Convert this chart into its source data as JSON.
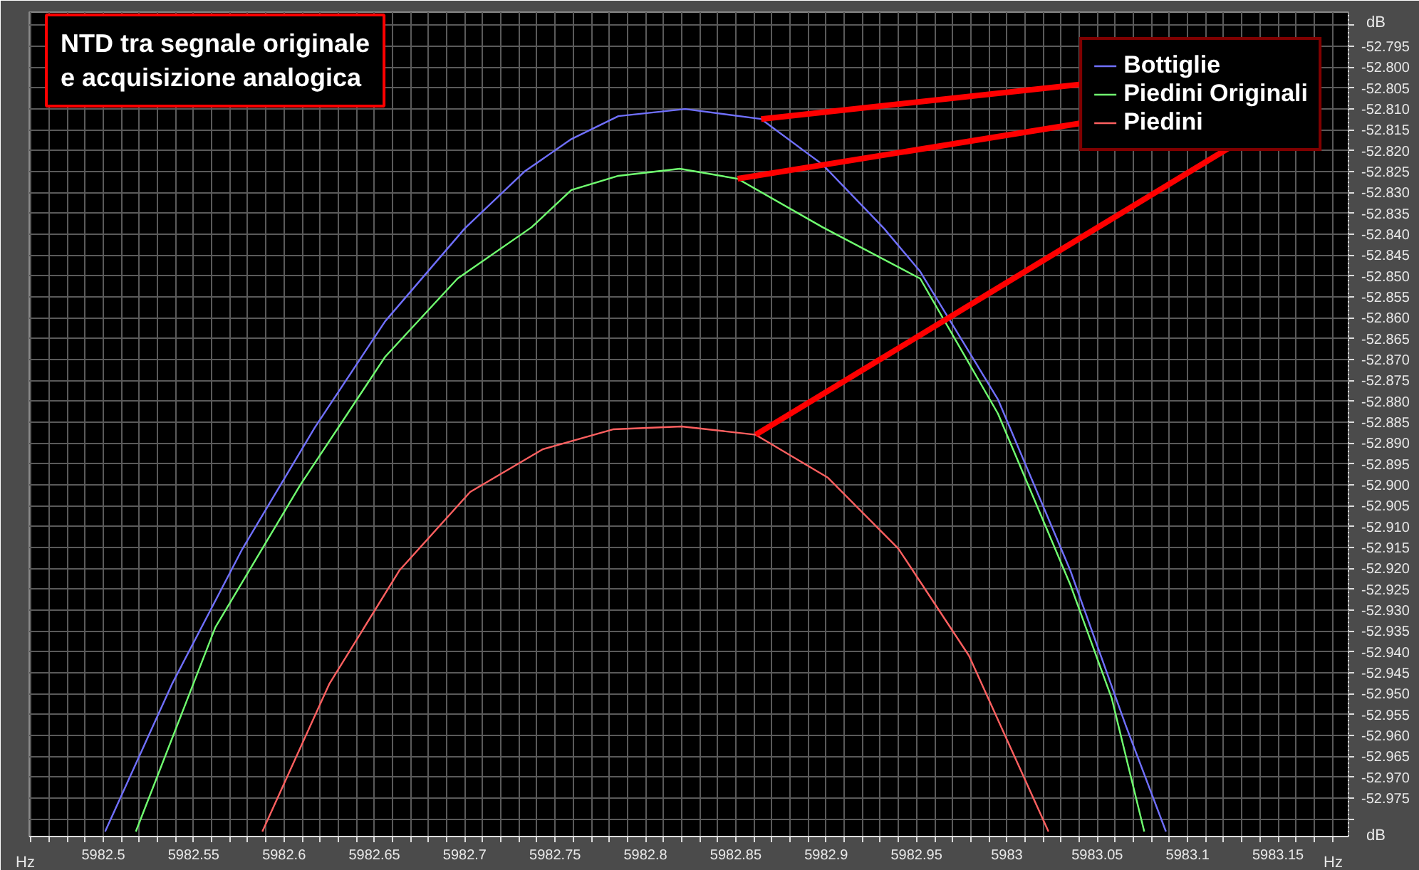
{
  "chart_data": {
    "type": "line",
    "title": "NTD tra segnale originale\ne acquisizione analogica",
    "xlabel": "Hz",
    "ylabel": "dB",
    "xlim": [
      5982.459,
      5983.189
    ],
    "ylim": [
      -52.9842,
      -52.7868
    ],
    "xticks": [
      {
        "value": 5982.46,
        "label": null
      },
      {
        "value": 5982.47,
        "label": null
      },
      {
        "value": 5982.48,
        "label": null
      },
      {
        "value": 5982.49,
        "label": null
      },
      5982.5,
      {
        "value": 5982.51,
        "label": null
      },
      {
        "value": 5982.52,
        "label": null
      },
      {
        "value": 5982.53,
        "label": null
      },
      {
        "value": 5982.54,
        "label": null
      },
      5982.55,
      {
        "value": 5982.56,
        "label": null
      },
      {
        "value": 5982.57,
        "label": null
      },
      {
        "value": 5982.58,
        "label": null
      },
      {
        "value": 5982.59,
        "label": null
      },
      5982.6,
      {
        "value": 5982.61,
        "label": null
      },
      {
        "value": 5982.62,
        "label": null
      },
      {
        "value": 5982.63,
        "label": null
      },
      {
        "value": 5982.64,
        "label": null
      },
      5982.65,
      {
        "value": 5982.66,
        "label": null
      },
      {
        "value": 5982.67,
        "label": null
      },
      {
        "value": 5982.68,
        "label": null
      },
      {
        "value": 5982.69,
        "label": null
      },
      5982.7,
      {
        "value": 5982.71,
        "label": null
      },
      {
        "value": 5982.72,
        "label": null
      },
      {
        "value": 5982.73,
        "label": null
      },
      {
        "value": 5982.74,
        "label": null
      },
      5982.75,
      {
        "value": 5982.76,
        "label": null
      },
      {
        "value": 5982.77,
        "label": null
      },
      {
        "value": 5982.78,
        "label": null
      },
      {
        "value": 5982.79,
        "label": null
      },
      5982.8,
      {
        "value": 5982.81,
        "label": null
      },
      {
        "value": 5982.82,
        "label": null
      },
      {
        "value": 5982.83,
        "label": null
      },
      {
        "value": 5982.84,
        "label": null
      },
      5982.85,
      {
        "value": 5982.86,
        "label": null
      },
      {
        "value": 5982.87,
        "label": null
      },
      {
        "value": 5982.88,
        "label": null
      },
      {
        "value": 5982.89,
        "label": null
      },
      5982.9,
      {
        "value": 5982.91,
        "label": null
      },
      {
        "value": 5982.92,
        "label": null
      },
      {
        "value": 5982.93,
        "label": null
      },
      {
        "value": 5982.94,
        "label": null
      },
      5982.95,
      {
        "value": 5982.96,
        "label": null
      },
      {
        "value": 5982.97,
        "label": null
      },
      {
        "value": 5982.98,
        "label": null
      },
      {
        "value": 5982.99,
        "label": null
      },
      5983,
      {
        "value": 5983.01,
        "label": null
      },
      {
        "value": 5983.02,
        "label": null
      },
      {
        "value": 5983.03,
        "label": null
      },
      {
        "value": 5983.04,
        "label": null
      },
      5983.05,
      {
        "value": 5983.06,
        "label": null
      },
      {
        "value": 5983.07,
        "label": null
      },
      {
        "value": 5983.08,
        "label": null
      },
      {
        "value": 5983.09,
        "label": null
      },
      5983.1,
      {
        "value": 5983.11,
        "label": null
      },
      {
        "value": 5983.12,
        "label": null
      },
      {
        "value": 5983.13,
        "label": null
      },
      {
        "value": 5983.14,
        "label": null
      },
      5983.15,
      {
        "value": 5983.16,
        "label": null
      },
      {
        "value": 5983.17,
        "label": null
      },
      {
        "value": 5983.18,
        "label": null
      }
    ],
    "yticks": [
      {
        "value": -52.79,
        "label": null
      },
      {
        "value": -52.795,
        "label": "-52.795"
      },
      {
        "value": -52.8,
        "label": "-52.800"
      },
      {
        "value": -52.805,
        "label": "-52.805"
      },
      {
        "value": -52.81,
        "label": "-52.810"
      },
      {
        "value": -52.815,
        "label": "-52.815"
      },
      {
        "value": -52.82,
        "label": "-52.820"
      },
      {
        "value": -52.825,
        "label": "-52.825"
      },
      {
        "value": -52.83,
        "label": "-52.830"
      },
      {
        "value": -52.835,
        "label": "-52.835"
      },
      {
        "value": -52.84,
        "label": "-52.840"
      },
      {
        "value": -52.845,
        "label": "-52.845"
      },
      {
        "value": -52.85,
        "label": "-52.850"
      },
      {
        "value": -52.855,
        "label": "-52.855"
      },
      {
        "value": -52.86,
        "label": "-52.860"
      },
      {
        "value": -52.865,
        "label": "-52.865"
      },
      {
        "value": -52.87,
        "label": "-52.870"
      },
      {
        "value": -52.875,
        "label": "-52.875"
      },
      {
        "value": -52.88,
        "label": "-52.880"
      },
      {
        "value": -52.885,
        "label": "-52.885"
      },
      {
        "value": -52.89,
        "label": "-52.890"
      },
      {
        "value": -52.895,
        "label": "-52.895"
      },
      {
        "value": -52.9,
        "label": "-52.900"
      },
      {
        "value": -52.905,
        "label": "-52.905"
      },
      {
        "value": -52.91,
        "label": "-52.910"
      },
      {
        "value": -52.915,
        "label": "-52.915"
      },
      {
        "value": -52.92,
        "label": "-52.920"
      },
      {
        "value": -52.925,
        "label": "-52.925"
      },
      {
        "value": -52.93,
        "label": "-52.930"
      },
      {
        "value": -52.935,
        "label": "-52.935"
      },
      {
        "value": -52.94,
        "label": "-52.940"
      },
      {
        "value": -52.945,
        "label": "-52.945"
      },
      {
        "value": -52.95,
        "label": "-52.950"
      },
      {
        "value": -52.955,
        "label": "-52.955"
      },
      {
        "value": -52.96,
        "label": "-52.960"
      },
      {
        "value": -52.965,
        "label": "-52.965"
      },
      {
        "value": -52.97,
        "label": "-52.970"
      },
      {
        "value": -52.975,
        "label": "-52.975"
      },
      {
        "value": -52.98,
        "label": null
      }
    ],
    "grid": true,
    "legend": "top right",
    "marker": "none",
    "line_style": "solid",
    "series": [
      {
        "name": "Bottiglie",
        "color": "#7070ff",
        "x": [
          5982.501,
          5982.538,
          5982.577,
          5982.617,
          5982.656,
          5982.7,
          5982.733,
          5982.759,
          5982.785,
          5982.822,
          5982.864,
          5982.898,
          5982.932,
          5982.952,
          5982.995,
          5983.035,
          5983.066,
          5983.088
        ],
        "values": [
          -52.983,
          -52.9477,
          -52.9153,
          -52.8863,
          -52.8608,
          -52.8386,
          -52.825,
          -52.8172,
          -52.8117,
          -52.81,
          -52.8124,
          -52.8233,
          -52.8386,
          -52.8489,
          -52.8795,
          -52.9204,
          -52.9579,
          -52.983
        ]
      },
      {
        "name": "Piedini Originali",
        "color": "#70ff70",
        "x": [
          5982.518,
          5982.562,
          5982.609,
          5982.656,
          5982.696,
          5982.737,
          5982.759,
          5982.785,
          5982.819,
          5982.851,
          5982.898,
          5982.952,
          5982.995,
          5983.035,
          5983.058,
          5983.076
        ],
        "values": [
          -52.983,
          -52.9341,
          -52.9,
          -52.8693,
          -52.8506,
          -52.8383,
          -52.8294,
          -52.826,
          -52.8243,
          -52.8267,
          -52.8383,
          -52.8506,
          -52.8829,
          -52.9238,
          -52.9511,
          -52.983
        ]
      },
      {
        "name": "Piedini",
        "color": "#ff6060",
        "x": [
          5982.588,
          5982.625,
          5982.664,
          5982.703,
          5982.743,
          5982.782,
          5982.82,
          5982.861,
          5982.901,
          5982.94,
          5982.979,
          5983.023
        ],
        "values": [
          -52.983,
          -52.9477,
          -52.9204,
          -52.9017,
          -52.8915,
          -52.8867,
          -52.886,
          -52.888,
          -52.8983,
          -52.9153,
          -52.9409,
          -52.983
        ]
      }
    ]
  }
}
